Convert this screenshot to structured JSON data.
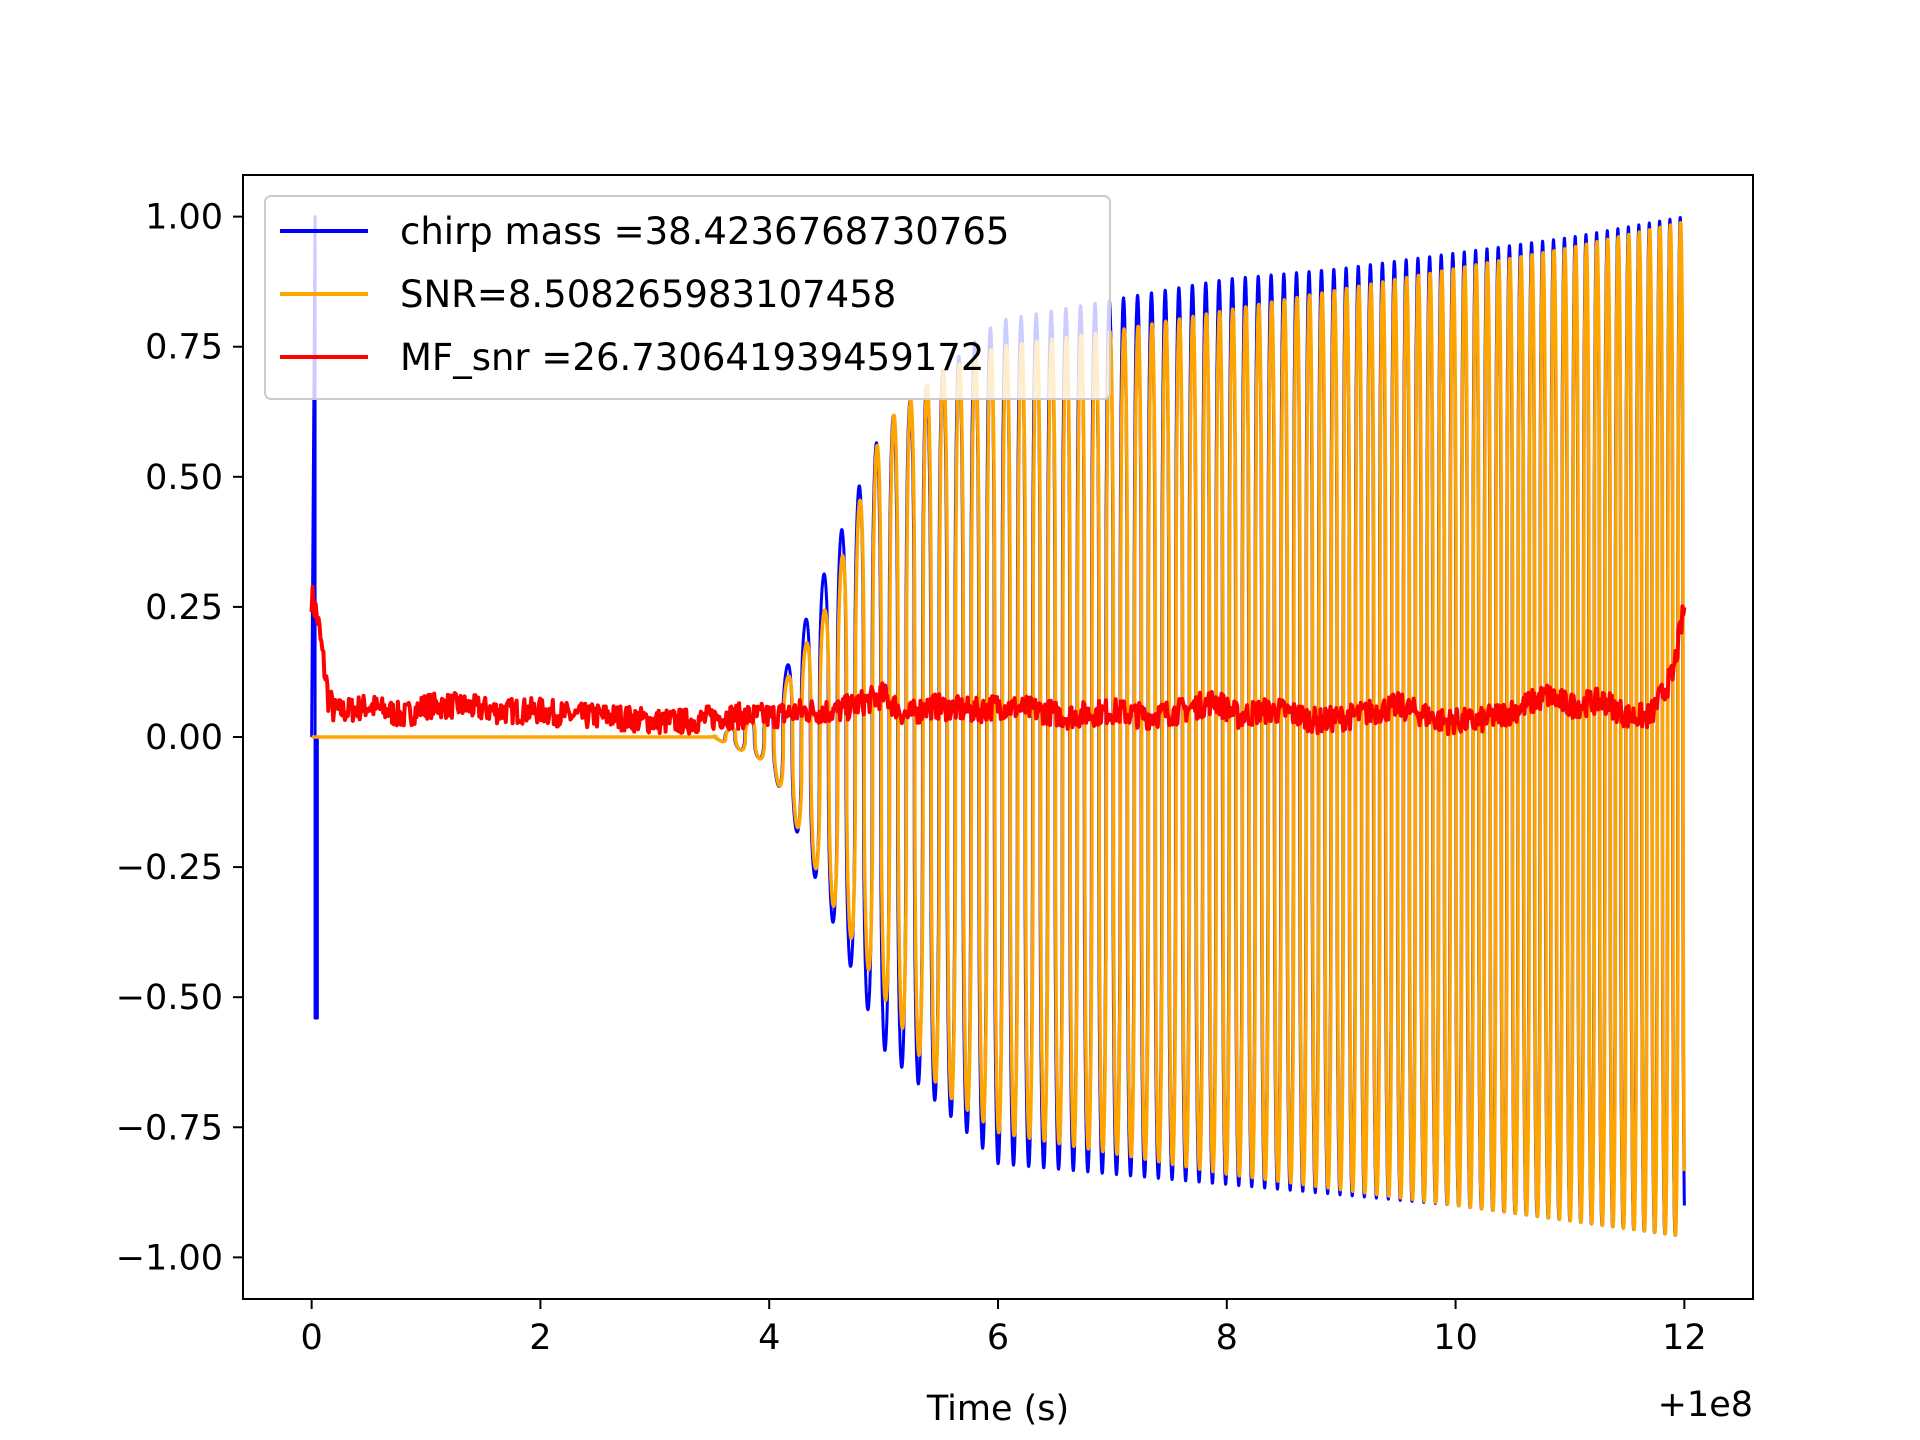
{
  "chart_data": {
    "type": "line",
    "title": "",
    "xlabel": "Time (s)",
    "ylabel": "",
    "x_offset_label": "+1e8",
    "xlim": [
      -0.6,
      12.6
    ],
    "ylim": [
      -1.08,
      1.08
    ],
    "x_ticks": [
      0,
      2,
      4,
      6,
      8,
      10,
      12
    ],
    "x_tick_labels": [
      "0",
      "2",
      "4",
      "6",
      "8",
      "10",
      "12"
    ],
    "y_ticks": [
      1.0,
      0.75,
      0.5,
      0.25,
      0.0,
      -0.25,
      -0.5,
      -0.75,
      -1.0
    ],
    "y_tick_labels": [
      "1.00",
      "0.75",
      "0.50",
      "0.25",
      "0.00",
      "−0.25",
      "−0.50",
      "−0.75",
      "−1.00"
    ],
    "grid": false,
    "legend_position": "top-left",
    "series": [
      {
        "name": "chirp mass =38.4236768730765",
        "color": "#0000ff",
        "description_points": {
          "x": [
            0.0,
            0.03,
            0.03,
            0.05,
            0.05,
            3.5,
            4.0,
            5.0,
            6.0,
            7.0,
            8.0,
            9.0,
            10.0,
            11.0,
            12.0
          ],
          "upper": [
            0.0,
            1.0,
            1.0,
            -0.54,
            0.0,
            0.0,
            0.05,
            0.6,
            0.8,
            0.84,
            0.88,
            0.9,
            0.93,
            0.96,
            1.0
          ],
          "lower": [
            0.0,
            0.0,
            -0.54,
            -0.54,
            0.0,
            0.0,
            -0.05,
            -0.6,
            -0.82,
            -0.84,
            -0.86,
            -0.88,
            -0.9,
            -0.93,
            -0.96
          ]
        }
      },
      {
        "name": "SNR=8.508265983107458",
        "color": "#ffa500",
        "description_points": {
          "x": [
            0.0,
            3.5,
            4.0,
            4.5,
            5.0,
            5.5,
            6.0,
            7.0,
            8.0,
            9.0,
            10.0,
            11.0,
            12.0
          ],
          "upper": [
            0.0,
            0.0,
            0.05,
            0.25,
            0.6,
            0.7,
            0.75,
            0.78,
            0.82,
            0.86,
            0.9,
            0.94,
            0.99
          ],
          "lower": [
            0.0,
            0.0,
            -0.05,
            -0.3,
            -0.5,
            -0.68,
            -0.76,
            -0.8,
            -0.84,
            -0.87,
            -0.9,
            -0.93,
            -0.96
          ]
        }
      },
      {
        "name": "MF_snr =26.730641939459172",
        "color": "#ff0000",
        "x": [
          0.0,
          0.05,
          0.1,
          0.15,
          0.2,
          0.3,
          0.5,
          0.8,
          1.0,
          1.3,
          1.6,
          2.0,
          2.3,
          2.6,
          3.0,
          3.3,
          3.6,
          4.0,
          4.3,
          4.6,
          5.0,
          5.2,
          5.4,
          5.8,
          6.0,
          6.4,
          6.6,
          7.0,
          7.3,
          7.6,
          7.9,
          8.1,
          8.3,
          8.5,
          8.8,
          9.1,
          9.5,
          9.9,
          10.2,
          10.5,
          10.8,
          11.0,
          11.3,
          11.5,
          11.7,
          11.9,
          12.0
        ],
        "y": [
          0.27,
          0.23,
          0.15,
          0.07,
          0.05,
          0.05,
          0.06,
          0.04,
          0.06,
          0.06,
          0.05,
          0.05,
          0.04,
          0.04,
          0.03,
          0.03,
          0.04,
          0.04,
          0.05,
          0.05,
          0.08,
          0.04,
          0.06,
          0.05,
          0.06,
          0.05,
          0.04,
          0.05,
          0.04,
          0.05,
          0.07,
          0.04,
          0.05,
          0.05,
          0.03,
          0.04,
          0.06,
          0.03,
          0.03,
          0.05,
          0.08,
          0.06,
          0.07,
          0.04,
          0.04,
          0.12,
          0.25
        ]
      }
    ]
  }
}
